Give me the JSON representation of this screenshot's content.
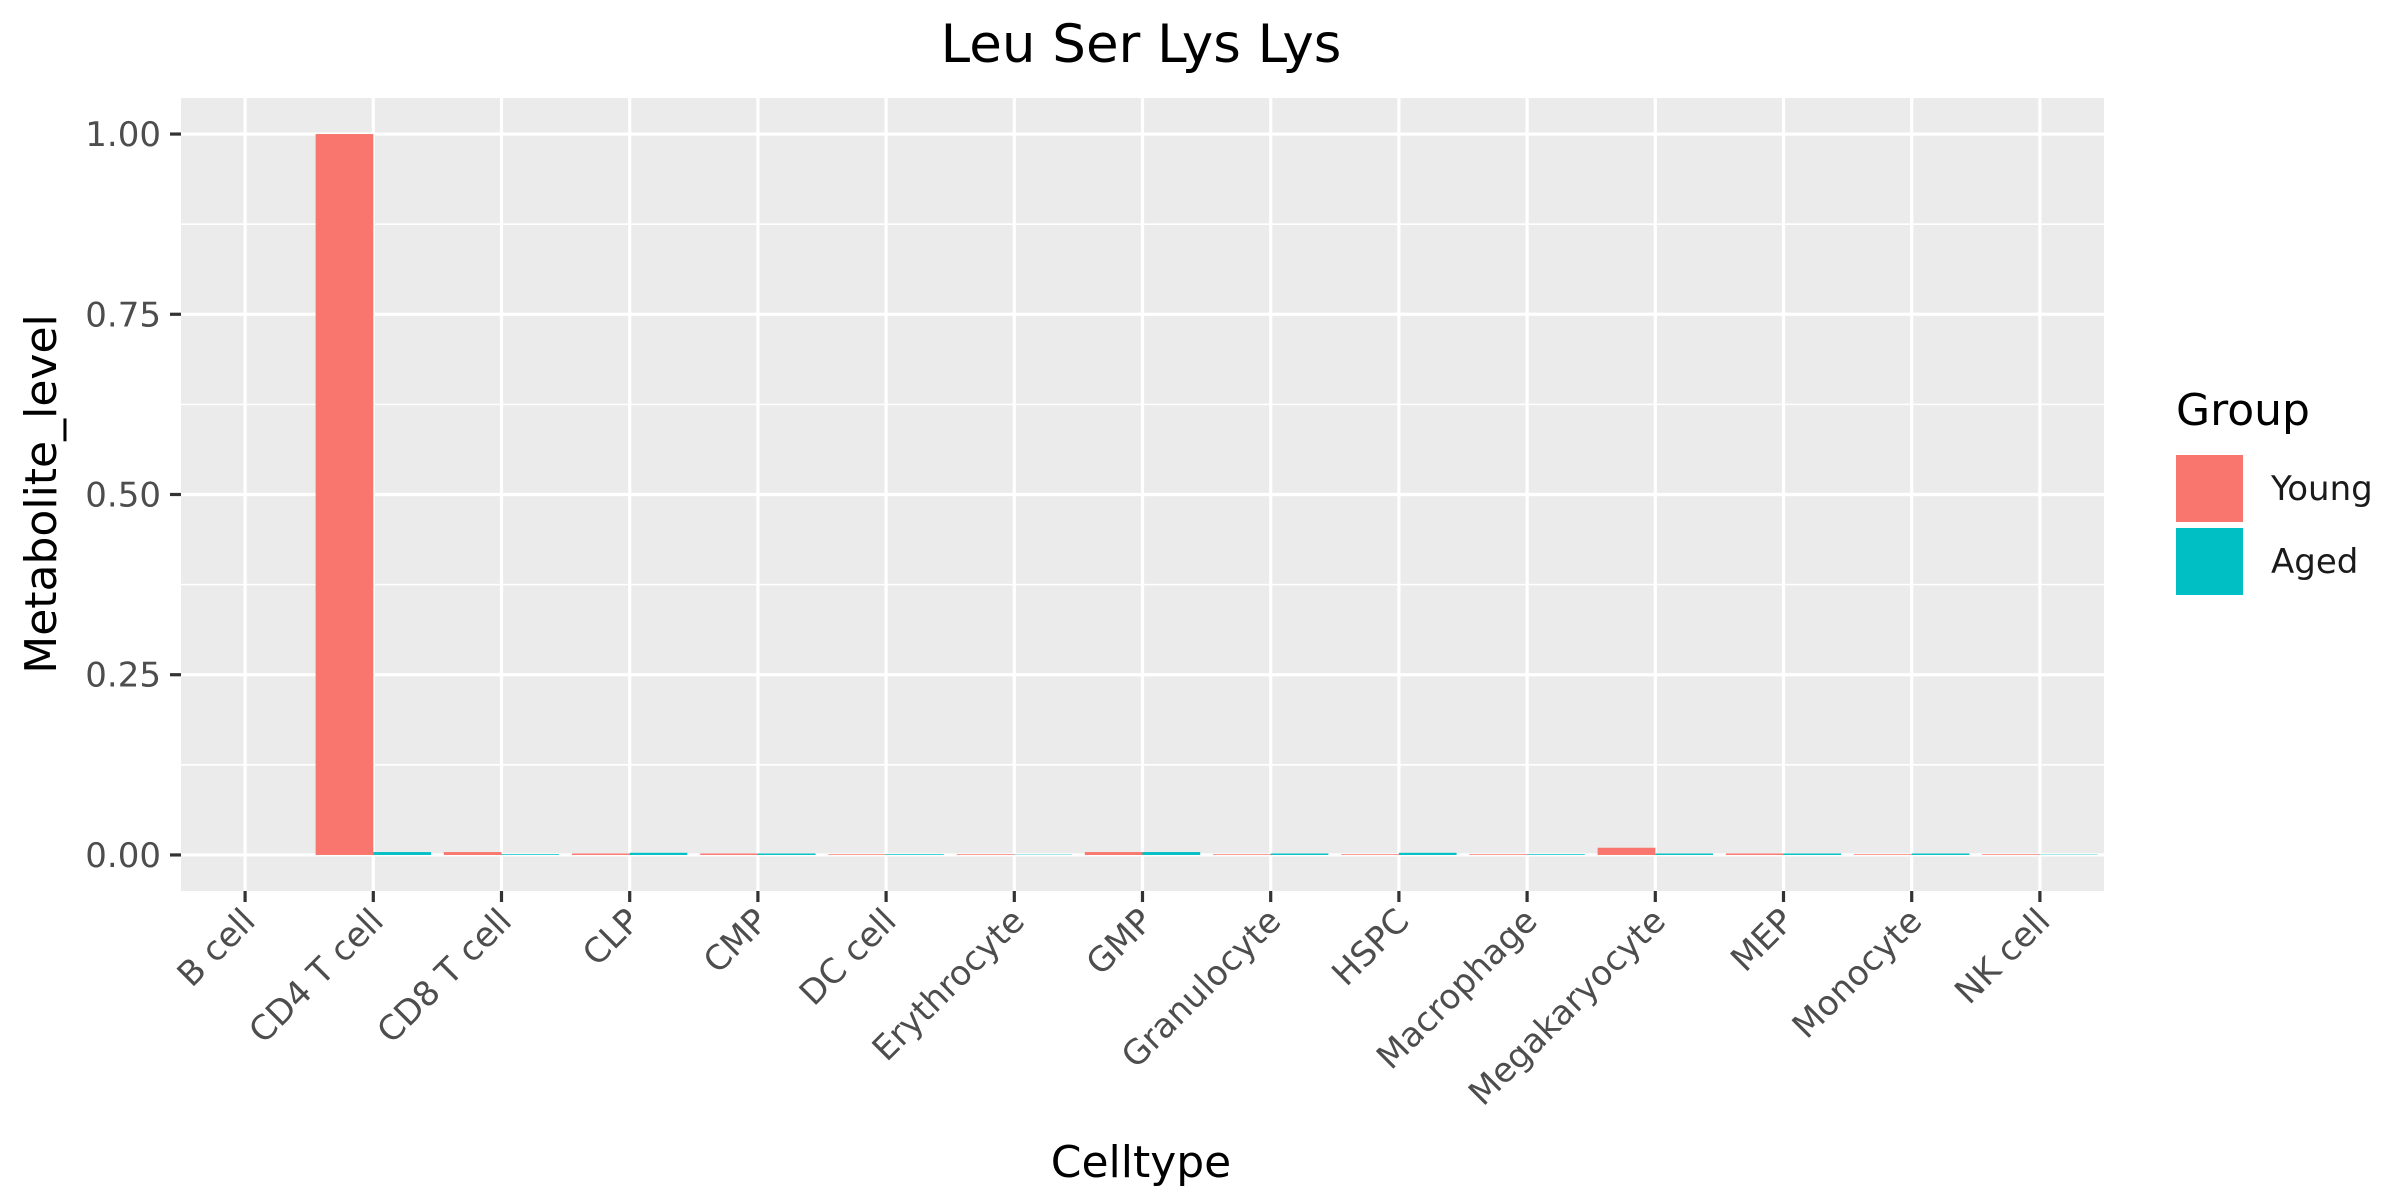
{
  "chart_data": {
    "type": "bar",
    "title": "Leu Ser Lys Lys",
    "xlabel": "Celltype",
    "ylabel": "Metabolite_level",
    "categories": [
      "B cell",
      "CD4 T cell",
      "CD8 T cell",
      "CLP",
      "CMP",
      "DC cell",
      "Erythrocyte",
      "GMP",
      "Granulocyte",
      "HSPC",
      "Macrophage",
      "Megakaryocyte",
      "MEP",
      "Monocyte",
      "NK cell"
    ],
    "series": [
      {
        "name": "Young",
        "color": "#F8766D",
        "values": [
          0,
          1.0,
          0.004,
          0.002,
          0.002,
          0.001,
          0.001,
          0.004,
          0.001,
          0.001,
          0.001,
          0.01,
          0.002,
          0.001,
          0.001
        ]
      },
      {
        "name": "Aged",
        "color": "#00BFC4",
        "values": [
          0,
          0.004,
          0.001,
          0.003,
          0.002,
          0.001,
          0.0005,
          0.004,
          0.002,
          0.003,
          0.001,
          0.002,
          0.002,
          0.002,
          0.0005
        ]
      }
    ],
    "ylim": [
      -0.05,
      1.05
    ],
    "yticks": [
      0,
      0.25,
      0.5,
      0.75,
      1.0
    ],
    "ytick_labels": [
      "0.00",
      "0.25",
      "0.50",
      "0.75",
      "1.00"
    ],
    "grid": true,
    "legend": {
      "title": "Group",
      "position": "right"
    },
    "panel_background": "#EBEBEB",
    "grid_color": "#FFFFFF"
  }
}
